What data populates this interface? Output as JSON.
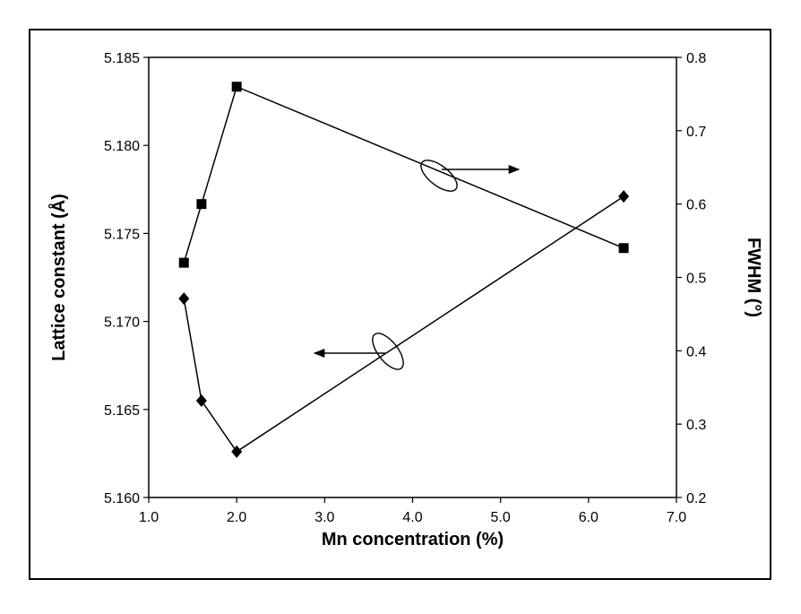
{
  "chart_data": {
    "type": "scatter",
    "title": "",
    "xlabel": "Mn concentration (%)",
    "ylabel": "Lattice constant (Å)",
    "y2label": "FWHM (°)",
    "xlim": [
      1.0,
      7.0
    ],
    "ylim": [
      5.16,
      5.185
    ],
    "y2lim": [
      0.2,
      0.8
    ],
    "x_ticks": [
      "1.0",
      "2.0",
      "3.0",
      "4.0",
      "5.0",
      "6.0",
      "7.0"
    ],
    "y_ticks": [
      "5.160",
      "5.165",
      "5.170",
      "5.175",
      "5.180",
      "5.185"
    ],
    "y2_ticks": [
      "0.2",
      "0.3",
      "0.4",
      "0.5",
      "0.6",
      "0.7",
      "0.8"
    ],
    "grid": false,
    "legend": "none",
    "series": [
      {
        "axis": "left",
        "marker": "diamond",
        "color": "#000000",
        "x": [
          1.4,
          1.6,
          2.0,
          6.4
        ],
        "y": [
          5.1713,
          5.1655,
          5.1626,
          5.1771
        ]
      },
      {
        "axis": "right",
        "marker": "square",
        "color": "#000000",
        "x": [
          1.4,
          1.6,
          2.0,
          6.4
        ],
        "y": [
          0.52,
          0.6,
          0.76,
          0.54
        ]
      }
    ],
    "annotations": [
      {
        "marker": "ellipse-arrow",
        "points_to": "left",
        "series_axis": "left"
      },
      {
        "marker": "ellipse-arrow",
        "points_to": "right",
        "series_axis": "right"
      }
    ]
  }
}
